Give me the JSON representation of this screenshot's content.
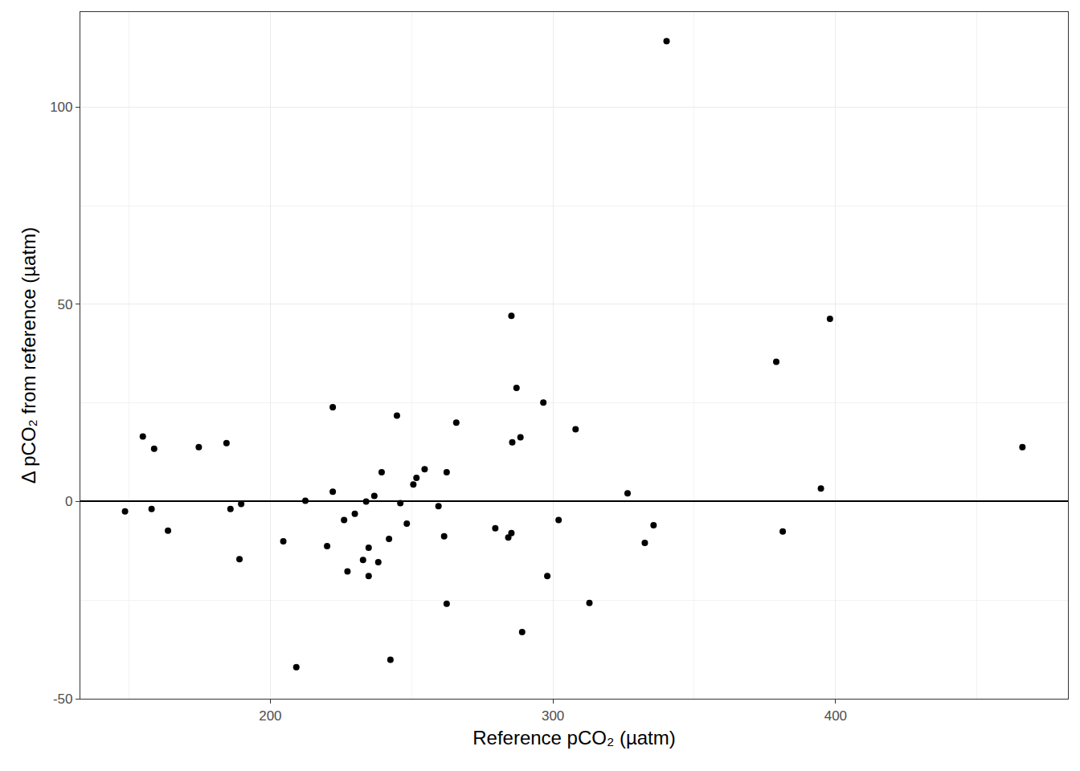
{
  "chart_data": {
    "type": "scatter",
    "x_label": "Reference pCO₂ (µatm)",
    "y_label": "Δ pCO₂ from reference (µatm)",
    "x": [
      148.6,
      154.9,
      158.0,
      158.9,
      163.8,
      174.7,
      184.5,
      185.9,
      189.1,
      189.7,
      204.6,
      209.2,
      212.4,
      220.1,
      222.1,
      222.1,
      226.1,
      227.3,
      229.9,
      232.8,
      233.9,
      234.8,
      234.8,
      236.8,
      238.2,
      239.4,
      242.0,
      242.5,
      244.8,
      246.0,
      248.3,
      250.6,
      251.7,
      254.6,
      259.5,
      261.5,
      262.4,
      262.4,
      265.8,
      279.6,
      284.2,
      285.3,
      285.3,
      285.6,
      287.1,
      288.5,
      289.1,
      296.6,
      298.0,
      302.0,
      308.0,
      312.9,
      326.4,
      332.5,
      335.6,
      340.2,
      379.0,
      381.3,
      394.8,
      398.0,
      466.1
    ],
    "values": [
      -2.5,
      16.5,
      -1.9,
      13.4,
      -7.4,
      13.8,
      14.8,
      -1.9,
      -14.6,
      -0.6,
      -10.1,
      -42.0,
      0.2,
      -11.3,
      23.9,
      2.5,
      -4.7,
      -17.7,
      -3.1,
      -14.8,
      0.0,
      -11.7,
      -18.9,
      1.4,
      -15.4,
      7.4,
      -9.5,
      -40.1,
      21.8,
      -0.4,
      -5.6,
      4.3,
      6.0,
      8.2,
      -1.2,
      -8.8,
      7.4,
      -25.9,
      20.0,
      -6.8,
      -9.1,
      -8.0,
      47.1,
      15.0,
      28.8,
      16.3,
      -33.1,
      25.1,
      -18.9,
      -4.7,
      18.3,
      -25.7,
      2.1,
      -10.5,
      -6.0,
      116.7,
      35.4,
      -7.6,
      3.3,
      46.3,
      13.8
    ],
    "color": "#000000",
    "marker": "circle",
    "xlim": [
      132.8,
      482.2
    ],
    "xticks": [
      200,
      300,
      400
    ],
    "ylim": [
      -50,
      124.1
    ],
    "yticks": [
      -50,
      0,
      50,
      100
    ],
    "grid": true
  }
}
